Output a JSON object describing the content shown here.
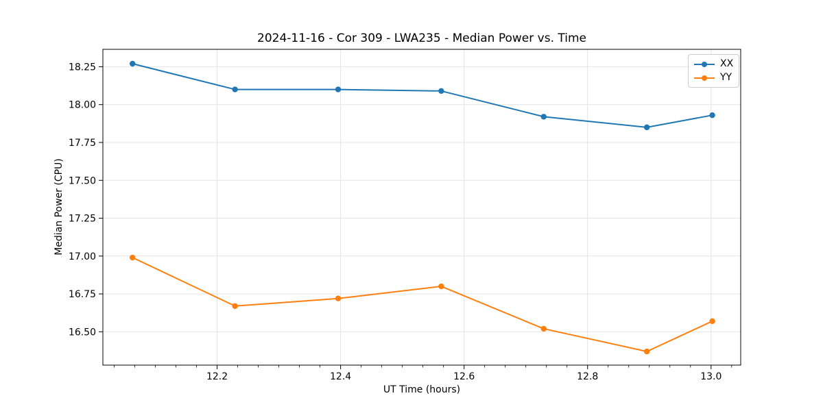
{
  "chart_data": {
    "type": "line",
    "title": "2024-11-16 - Cor 309 - LWA235 - Median Power vs. Time",
    "xlabel": "UT Time (hours)",
    "ylabel": "Median Power (CPU)",
    "x": [
      12.063,
      12.229,
      12.396,
      12.563,
      12.729,
      12.896,
      13.002
    ],
    "series": [
      {
        "name": "XX",
        "color": "#1f77b4",
        "marker": "circle",
        "values": [
          18.27,
          18.1,
          18.1,
          18.09,
          17.92,
          17.85,
          17.93
        ]
      },
      {
        "name": "YY",
        "color": "#ff7f0e",
        "marker": "circle",
        "values": [
          16.99,
          16.67,
          16.72,
          16.8,
          16.52,
          16.37,
          16.57
        ]
      }
    ],
    "xlim": [
      12.015,
      13.048
    ],
    "ylim": [
      16.28,
      18.365
    ],
    "x_ticks": [
      {
        "value": 12.2,
        "label": "12.2"
      },
      {
        "value": 12.4,
        "label": "12.4"
      },
      {
        "value": 12.6,
        "label": "12.6"
      },
      {
        "value": 12.8,
        "label": "12.8"
      },
      {
        "value": 13.0,
        "label": "13.0"
      }
    ],
    "y_ticks": [
      {
        "value": 16.5,
        "label": "16.50"
      },
      {
        "value": 16.75,
        "label": "16.75"
      },
      {
        "value": 17.0,
        "label": "17.00"
      },
      {
        "value": 17.25,
        "label": "17.25"
      },
      {
        "value": 17.5,
        "label": "17.50"
      },
      {
        "value": 17.75,
        "label": "17.75"
      },
      {
        "value": 18.0,
        "label": "18.00"
      },
      {
        "value": 18.25,
        "label": "18.25"
      }
    ],
    "x_minor_step": 0.0333333,
    "grid": true,
    "grid_color": "#e4e4e4",
    "legend": {
      "position": "upper-right"
    }
  }
}
